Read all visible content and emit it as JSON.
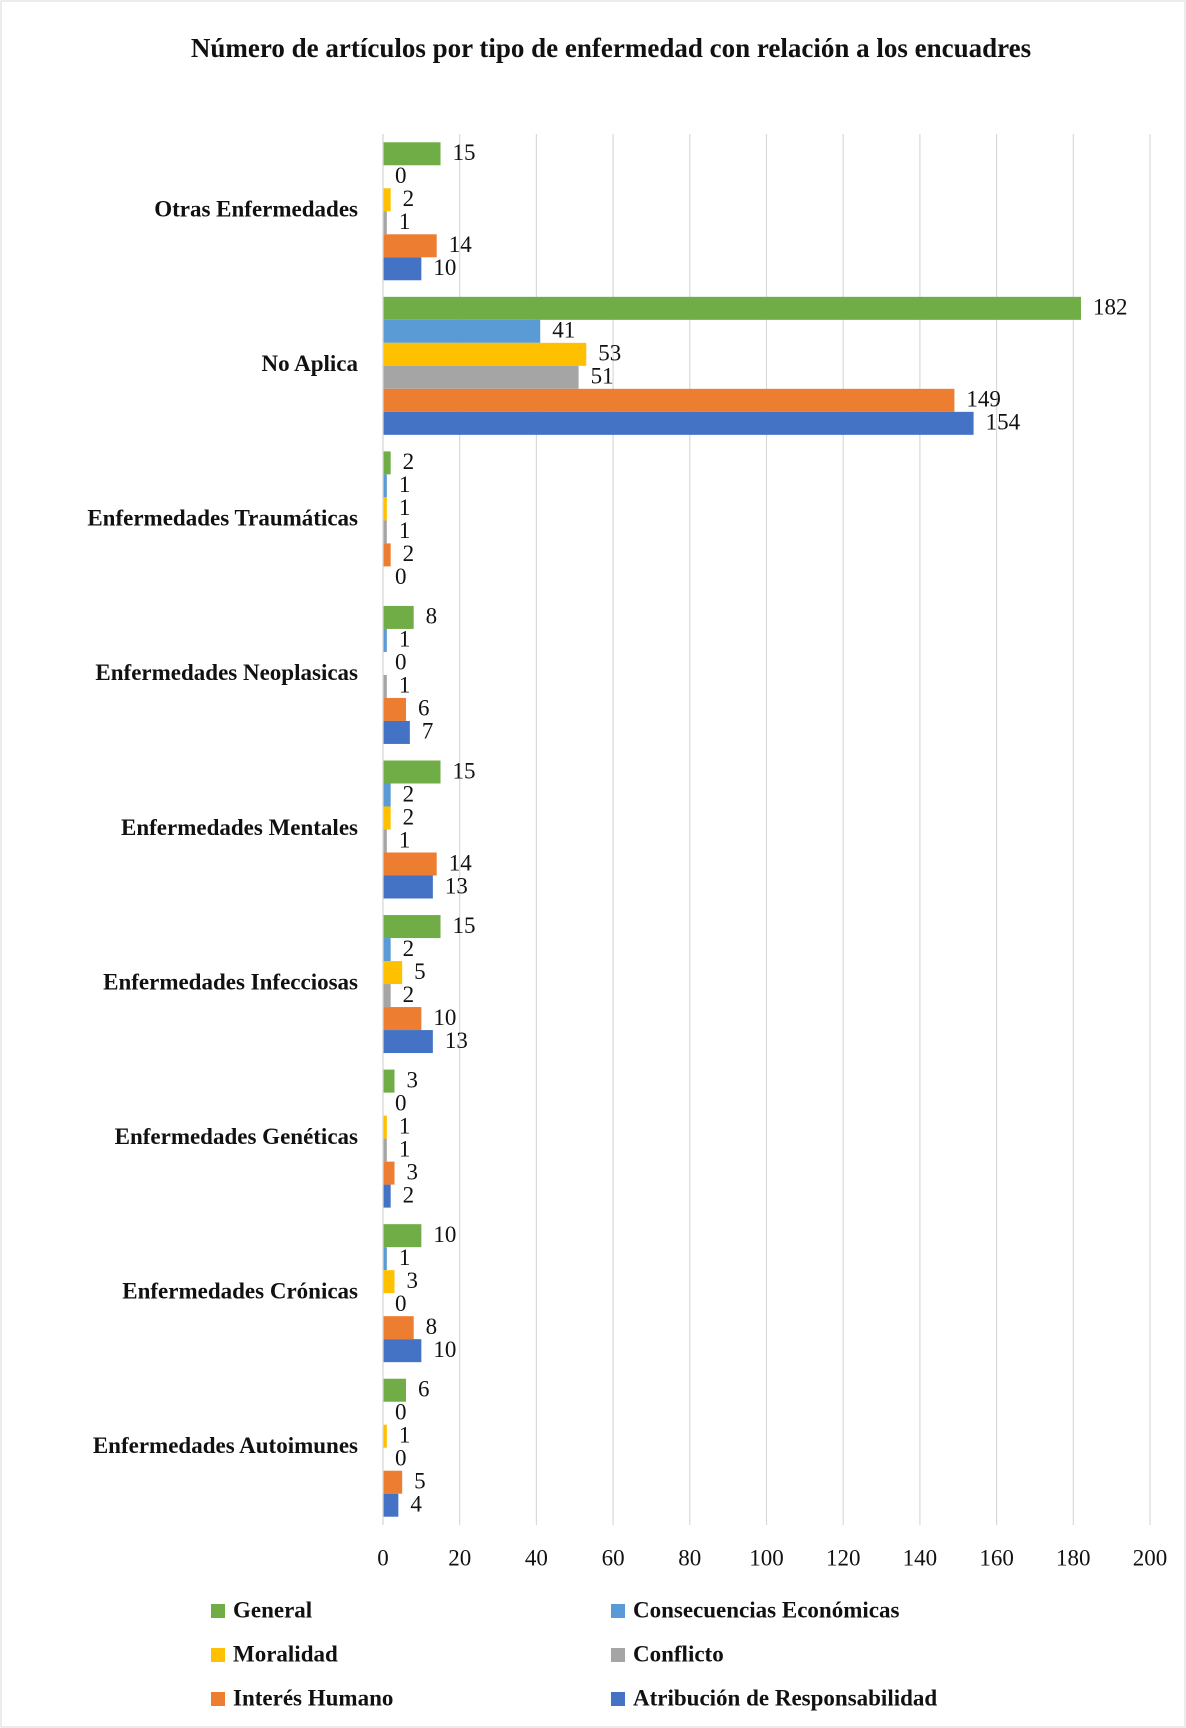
{
  "chart_data": {
    "type": "bar",
    "orientation": "horizontal",
    "title": "Número de artículos por tipo de enfermedad con relación a los encuadres",
    "categories": [
      "Otras Enfermedades",
      "No Aplica",
      "Enfermedades Traumáticas",
      "Enfermedades Neoplasicas",
      "Enfermedades Mentales",
      "Enfermedades Infecciosas",
      "Enfermedades Genéticas",
      "Enfermedades Crónicas",
      "Enfermedades Autoimunes"
    ],
    "series": [
      {
        "name": "General",
        "color": "#70ad47",
        "values": [
          15,
          182,
          2,
          8,
          15,
          15,
          3,
          10,
          6
        ]
      },
      {
        "name": "Consecuencias Económicas",
        "color": "#5b9bd5",
        "values": [
          0,
          41,
          1,
          1,
          2,
          2,
          0,
          1,
          0
        ]
      },
      {
        "name": "Moralidad",
        "color": "#ffc000",
        "values": [
          2,
          53,
          1,
          0,
          2,
          5,
          1,
          3,
          1
        ]
      },
      {
        "name": "Conflicto",
        "color": "#a5a5a5",
        "values": [
          1,
          51,
          1,
          1,
          1,
          2,
          1,
          0,
          0
        ]
      },
      {
        "name": "Interés Humano",
        "color": "#ed7d31",
        "values": [
          14,
          149,
          2,
          6,
          14,
          10,
          3,
          8,
          5
        ]
      },
      {
        "name": "Atribución de Responsabilidad",
        "color": "#4472c4",
        "values": [
          10,
          154,
          0,
          7,
          13,
          13,
          2,
          10,
          4
        ]
      }
    ],
    "xlim": [
      0,
      200
    ],
    "xticks": [
      0,
      20,
      40,
      60,
      80,
      100,
      120,
      140,
      160,
      180,
      200
    ],
    "grid": true,
    "legend": "bottom"
  }
}
